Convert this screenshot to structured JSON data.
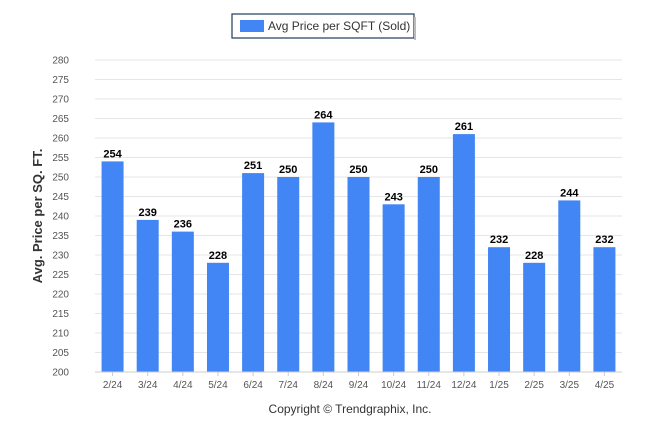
{
  "chart_data": {
    "type": "bar",
    "categories": [
      "2/24",
      "3/24",
      "4/24",
      "5/24",
      "6/24",
      "7/24",
      "8/24",
      "9/24",
      "10/24",
      "11/24",
      "12/24",
      "1/25",
      "2/25",
      "3/25",
      "4/25"
    ],
    "series": [
      {
        "name": "Avg Price per SQFT (Sold)",
        "values": [
          254,
          239,
          236,
          228,
          251,
          250,
          264,
          250,
          243,
          250,
          261,
          232,
          228,
          244,
          232
        ],
        "color": "#4285f4"
      }
    ],
    "ylabel": "Avg. Price per SQ. FT.",
    "xlabel": "",
    "ylim": [
      200,
      280
    ],
    "ytick_step": 5,
    "grid": true,
    "legend_position": "top-center",
    "data_labels": true
  },
  "credit": "Copyright © Trendgraphix, Inc.",
  "colors": {
    "bar": "#4285f4",
    "grid": "#e6e6e6",
    "legend_border": "#1f3a5f"
  }
}
